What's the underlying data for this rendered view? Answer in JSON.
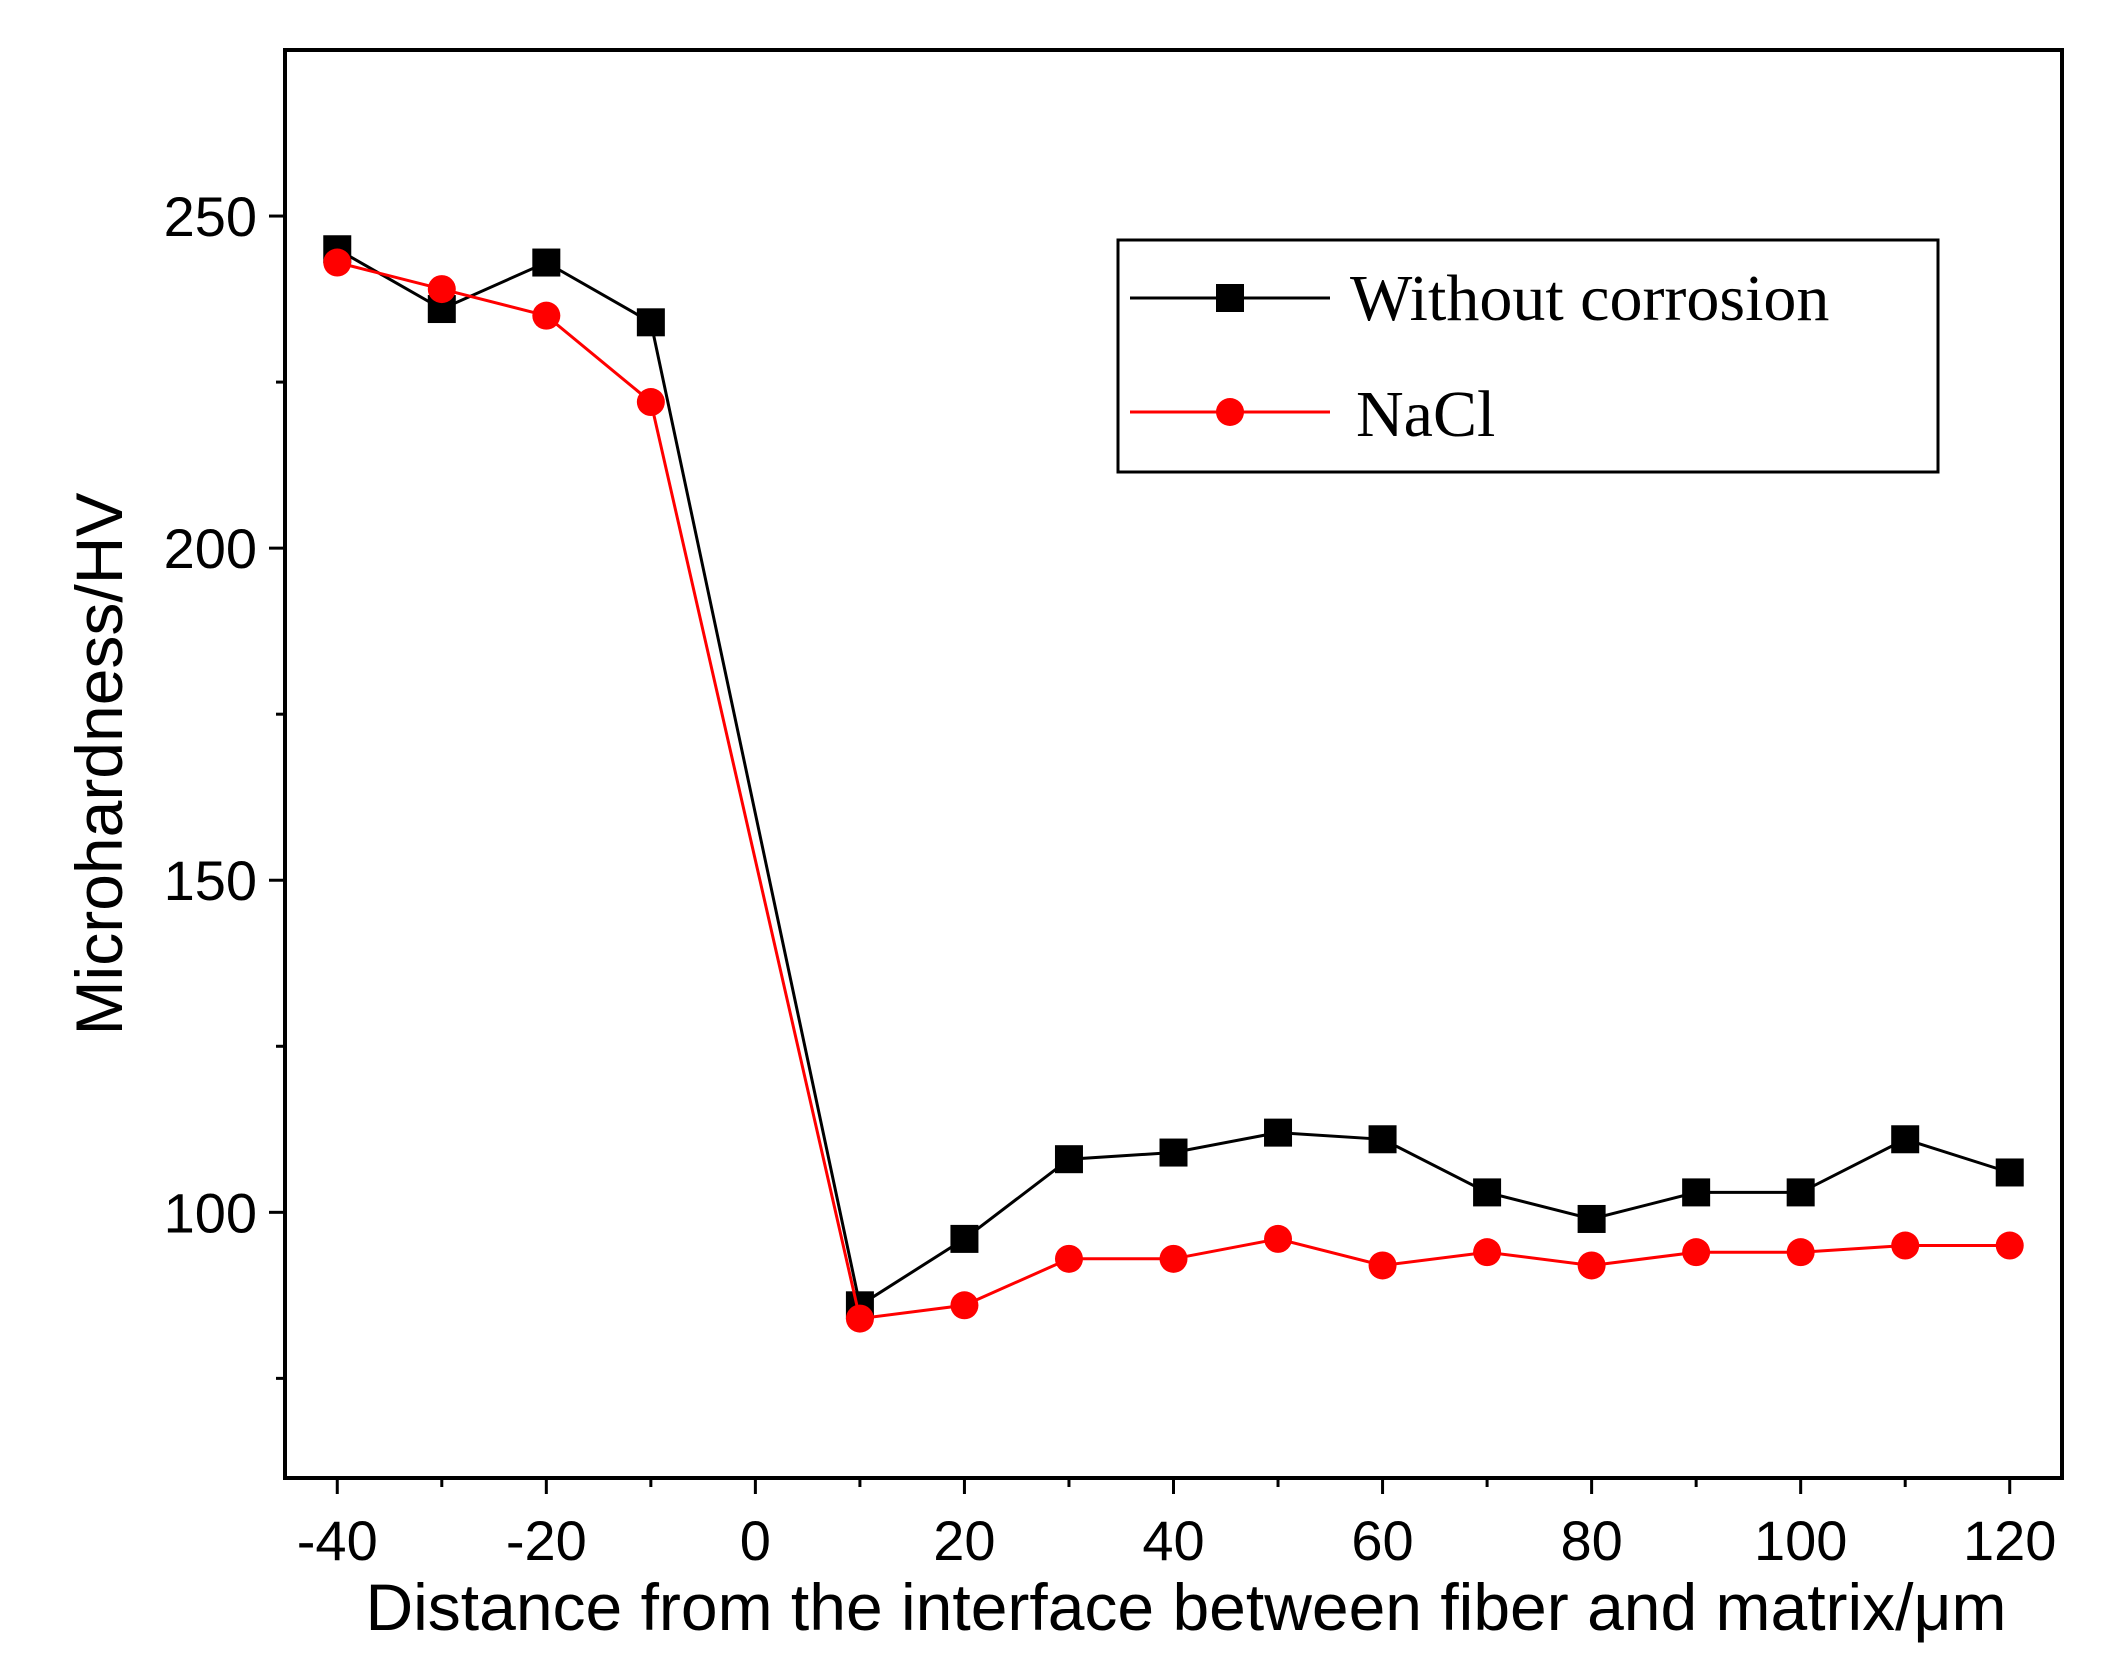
{
  "chart_data": {
    "type": "line",
    "title": "",
    "xlabel": "Distance from the interface between fiber and matrix/μm",
    "ylabel": "Microhardness/HV",
    "xlim": [
      -45,
      125
    ],
    "ylim": [
      60,
      275
    ],
    "xticks": [
      -40,
      -20,
      0,
      20,
      40,
      60,
      80,
      100,
      120
    ],
    "yticks": [
      100,
      150,
      200,
      250
    ],
    "x_minor_ticks": [
      -30,
      -10,
      10,
      30,
      50,
      70,
      90,
      110
    ],
    "y_minor_ticks": [
      75,
      125,
      175,
      225
    ],
    "legend_position": "top-right",
    "grid": false,
    "series": [
      {
        "name": "Without corrosion",
        "color": "#000000",
        "marker": "square",
        "x": [
          -40,
          -30,
          -20,
          -10,
          10,
          20,
          30,
          40,
          50,
          60,
          70,
          80,
          90,
          100,
          110,
          120
        ],
        "values": [
          245,
          236,
          243,
          234,
          86,
          96,
          108,
          109,
          112,
          111,
          103,
          99,
          103,
          103,
          111,
          106
        ]
      },
      {
        "name": "NaCl",
        "color": "#ff0000",
        "marker": "circle",
        "x": [
          -40,
          -30,
          -20,
          -10,
          10,
          20,
          30,
          40,
          50,
          60,
          70,
          80,
          90,
          100,
          110,
          120
        ],
        "values": [
          243,
          239,
          235,
          222,
          84,
          86,
          93,
          93,
          96,
          92,
          94,
          92,
          94,
          94,
          95,
          95
        ]
      }
    ]
  }
}
